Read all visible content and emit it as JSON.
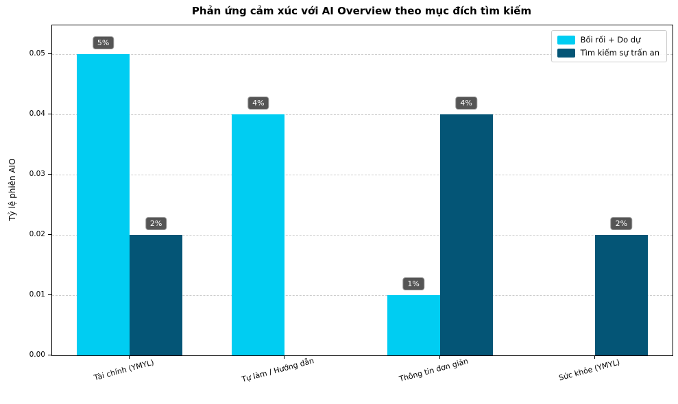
{
  "title": "Phản ứng cảm xúc với AI Overview theo mục đích tìm kiếm",
  "chart_data": {
    "type": "bar",
    "title": "Phản ứng cảm xúc với AI Overview theo mục đích tìm kiếm",
    "xlabel": "",
    "ylabel": "Tỷ lệ phiên AIO",
    "categories": [
      "Tài chính (YMYL)",
      "Tự làm / Hướng dẫn",
      "Thông tin đơn giản",
      "Sức khỏe (YMYL)"
    ],
    "series": [
      {
        "name": "Bối rối + Do dự",
        "color": "#00CDF2",
        "values": [
          0.05,
          0.04,
          0.01,
          0
        ],
        "labels": [
          "5%",
          "4%",
          "1%",
          ""
        ]
      },
      {
        "name": "Tìm kiếm sự trấn an",
        "color": "#045576",
        "values": [
          0.02,
          0,
          0.04,
          0.02
        ],
        "labels": [
          "2%",
          "",
          "4%",
          "2%"
        ]
      }
    ],
    "ylim": [
      0,
      0.0548
    ],
    "yticks": [
      0,
      0.01,
      0.02,
      0.03,
      0.04,
      0.05
    ],
    "ytick_labels": [
      "0.00",
      "0.01",
      "0.02",
      "0.03",
      "0.04",
      "0.05"
    ],
    "grid": "horizontal-dashed",
    "grid_color": "#cccccc",
    "legend_position": "upper right",
    "annotation_box": {
      "bg": "#555555",
      "border": "#999999",
      "text_color": "#ffffff"
    }
  }
}
